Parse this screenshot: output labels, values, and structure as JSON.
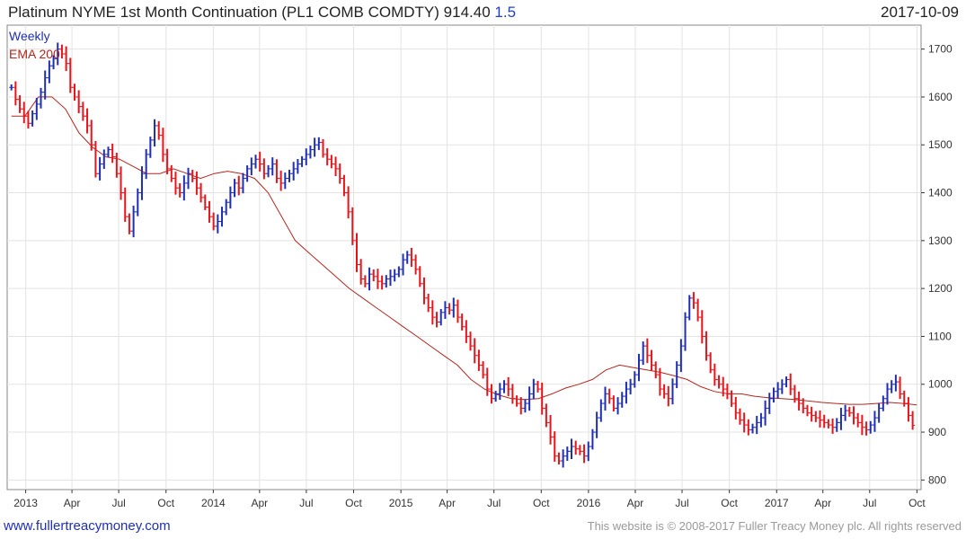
{
  "header": {
    "title": "Platinum NYME 1st Month Continuation (PL1 COMB COMDTY) 914.40",
    "change": "1.5",
    "date": "2017-10-09"
  },
  "legend": {
    "weekly": "Weekly",
    "ema": "EMA 200"
  },
  "footer": {
    "site": "www.fullertreacymoney.com",
    "copyright": "This website is © 2008-2017 Fuller Treacy Money plc. All rights reserved"
  },
  "colors": {
    "up": "#1f2fb5",
    "down": "#e8141b",
    "ema": "#b3261e",
    "grid": "#e3e3e3",
    "axis": "#333333"
  },
  "chart_data": {
    "type": "line",
    "frequency": "weekly",
    "series": [
      {
        "name": "Weekly",
        "kind": "ohlc-bars",
        "y": [
          1620,
          1595,
          1575,
          1560,
          1545,
          1565,
          1585,
          1610,
          1640,
          1665,
          1680,
          1700,
          1690,
          1670,
          1620,
          1600,
          1580,
          1560,
          1540,
          1500,
          1440,
          1460,
          1480,
          1490,
          1475,
          1440,
          1400,
          1350,
          1320,
          1360,
          1400,
          1440,
          1480,
          1510,
          1540,
          1520,
          1480,
          1450,
          1430,
          1410,
          1400,
          1420,
          1440,
          1430,
          1410,
          1390,
          1370,
          1350,
          1330,
          1340,
          1360,
          1380,
          1400,
          1420,
          1410,
          1430,
          1450,
          1460,
          1470,
          1460,
          1440,
          1450,
          1460,
          1430,
          1420,
          1430,
          1440,
          1450,
          1460,
          1470,
          1480,
          1490,
          1500,
          1505,
          1480,
          1470,
          1460,
          1450,
          1430,
          1400,
          1360,
          1300,
          1250,
          1220,
          1210,
          1230,
          1225,
          1215,
          1210,
          1220,
          1225,
          1230,
          1240,
          1260,
          1270,
          1260,
          1240,
          1210,
          1180,
          1160,
          1140,
          1130,
          1150,
          1160,
          1155,
          1165,
          1140,
          1120,
          1100,
          1080,
          1060,
          1040,
          1020,
          990,
          970,
          980,
          990,
          1000,
          990,
          970,
          960,
          950,
          960,
          980,
          1000,
          990,
          950,
          920,
          890,
          850,
          840,
          850,
          860,
          870,
          865,
          860,
          850,
          870,
          900,
          930,
          960,
          980,
          970,
          950,
          960,
          975,
          990,
          1000,
          1020,
          1050,
          1080,
          1060,
          1040,
          1020,
          990,
          980,
          970,
          1000,
          1040,
          1080,
          1140,
          1180,
          1170,
          1140,
          1100,
          1060,
          1030,
          1010,
          1000,
          990,
          980,
          960,
          940,
          925,
          915,
          905,
          910,
          920,
          930,
          950,
          970,
          985,
          990,
          1000,
          1010,
          990,
          970,
          960,
          950,
          940,
          935,
          930,
          925,
          920,
          915,
          910,
          920,
          935,
          945,
          940,
          930,
          920,
          910,
          905,
          915,
          930,
          950,
          970,
          990,
          1000,
          1005,
          980,
          960,
          935,
          914
        ]
      },
      {
        "name": "EMA 200",
        "kind": "line",
        "y": [
          1560,
          1560,
          1600,
          1600,
          1575,
          1525,
          1495,
          1475,
          1470,
          1455,
          1440,
          1440,
          1450,
          1440,
          1430,
          1440,
          1445,
          1440,
          1430,
          1400,
          1350,
          1300,
          1275,
          1250,
          1225,
          1200,
          1180,
          1160,
          1140,
          1120,
          1100,
          1080,
          1060,
          1040,
          1010,
          990,
          978,
          970,
          968,
          970,
          980,
          992,
          1000,
          1010,
          1030,
          1040,
          1035,
          1030,
          1025,
          1018,
          1010,
          995,
          985,
          980,
          980,
          975,
          972,
          970,
          968,
          965,
          962,
          960,
          958,
          958,
          960,
          962,
          960,
          957
        ]
      }
    ],
    "xlim": [
      "2012-11-26",
      "2017-10-09"
    ],
    "xticks": [
      "2013",
      "Apr",
      "Jul",
      "Oct",
      "2014",
      "Apr",
      "Jul",
      "Oct",
      "2015",
      "Apr",
      "Jul",
      "Oct",
      "2016",
      "Apr",
      "Jul",
      "Oct",
      "2017",
      "Apr",
      "Jul",
      "Oct"
    ],
    "yticks": [
      800,
      900,
      1000,
      1100,
      1200,
      1300,
      1400,
      1500,
      1600,
      1700
    ],
    "ylim": [
      780,
      1750
    ],
    "yaxis_side": "right",
    "grid": true,
    "legend_position": "top-left"
  }
}
